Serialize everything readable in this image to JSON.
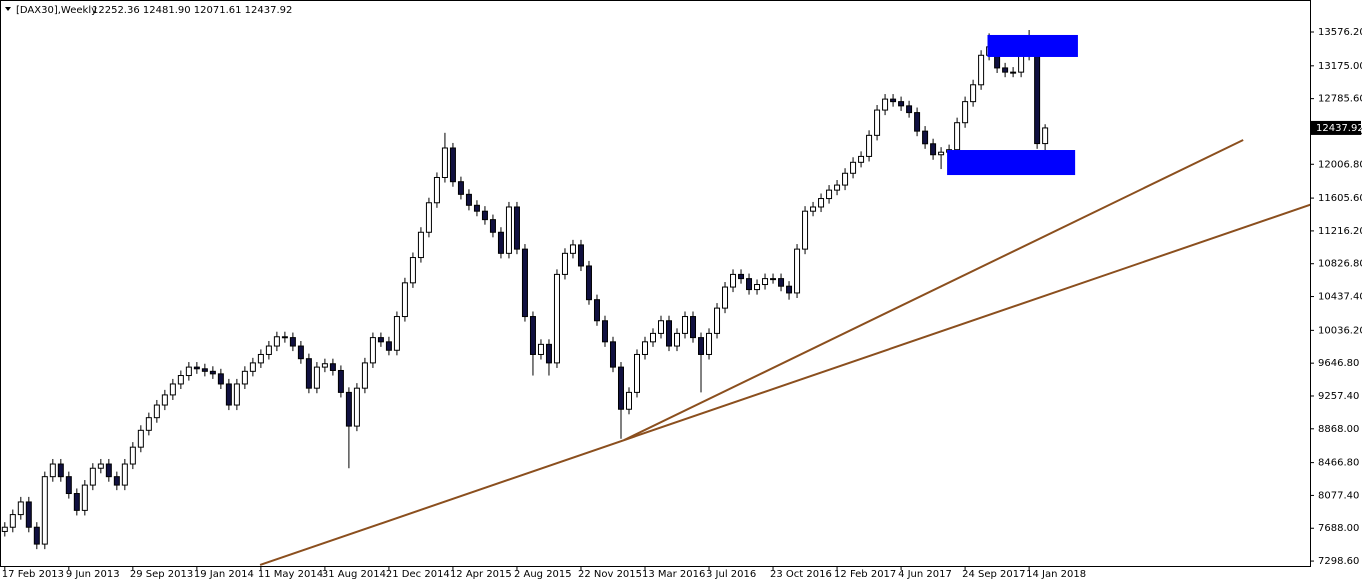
{
  "chart_data": {
    "type": "candlestick",
    "symbol": "[DAX30],Weekly",
    "ohlc_label": "12252.36 12481.90 12071.61 12437.92",
    "up_color": "#ffffff",
    "down_color": "#101040",
    "line_color": "#000000",
    "ylim": [
      7240,
      13956
    ],
    "xlim": [
      -0.6,
      163.1
    ],
    "yticks": [
      {
        "value": 7298.6,
        "label": "7298.60"
      },
      {
        "value": 7688,
        "label": "7688.00"
      },
      {
        "value": 8077.4,
        "label": "8077.40"
      },
      {
        "value": 8466.8,
        "label": "8466.80"
      },
      {
        "value": 8868,
        "label": "8868.00"
      },
      {
        "value": 9257.4,
        "label": "9257.40"
      },
      {
        "value": 9646.8,
        "label": "9646.80"
      },
      {
        "value": 10036.2,
        "label": "10036.20"
      },
      {
        "value": 10437.4,
        "label": "10437.40"
      },
      {
        "value": 10826.8,
        "label": "10826.80"
      },
      {
        "value": 11216.2,
        "label": "11216.20"
      },
      {
        "value": 11605.6,
        "label": "11605.60"
      },
      {
        "value": 12006.8,
        "label": "12006.80"
      },
      {
        "value": 12396.2,
        "label": "12396.20"
      },
      {
        "value": 12785.6,
        "label": "12785.60"
      },
      {
        "value": 13175,
        "label": "13175.00"
      },
      {
        "value": 13576.2,
        "label": "13576.20"
      }
    ],
    "xticks": [
      {
        "value": 0,
        "label": "17 Feb 2013"
      },
      {
        "value": 8,
        "label": "9 Jun 2013"
      },
      {
        "value": 16,
        "label": "29 Sep 2013"
      },
      {
        "value": 24,
        "label": "19 Jan 2014"
      },
      {
        "value": 32,
        "label": "11 May 2014"
      },
      {
        "value": 40,
        "label": "31 Aug 2014"
      },
      {
        "value": 48,
        "label": "21 Dec 2014"
      },
      {
        "value": 56,
        "label": "12 Apr 2015"
      },
      {
        "value": 64,
        "label": "2 Aug 2015"
      },
      {
        "value": 72,
        "label": "22 Nov 2015"
      },
      {
        "value": 80,
        "label": "13 Mar 2016"
      },
      {
        "value": 88,
        "label": "3 Jul 2016"
      },
      {
        "value": 96,
        "label": "23 Oct 2016"
      },
      {
        "value": 104,
        "label": "12 Feb 2017"
      },
      {
        "value": 112,
        "label": "4 Jun 2017"
      },
      {
        "value": 120,
        "label": "24 Sep 2017"
      },
      {
        "value": 128,
        "label": "14 Jan 2018"
      }
    ],
    "candles": [
      [
        7650,
        7760,
        7590,
        7700
      ],
      [
        7700,
        7910,
        7640,
        7850
      ],
      [
        7850,
        8060,
        7790,
        8000
      ],
      [
        8000,
        8060,
        7640,
        7700
      ],
      [
        7700,
        7760,
        7440,
        7500
      ],
      [
        7500,
        8360,
        7440,
        8300
      ],
      [
        8300,
        8510,
        8240,
        8450
      ],
      [
        8450,
        8510,
        8240,
        8300
      ],
      [
        8300,
        8360,
        8040,
        8100
      ],
      [
        8100,
        8160,
        7840,
        7900
      ],
      [
        7900,
        8260,
        7840,
        8200
      ],
      [
        8200,
        8460,
        8140,
        8400
      ],
      [
        8400,
        8510,
        8340,
        8450
      ],
      [
        8450,
        8510,
        8240,
        8300
      ],
      [
        8300,
        8360,
        8140,
        8200
      ],
      [
        8200,
        8510,
        8140,
        8450
      ],
      [
        8450,
        8710,
        8390,
        8650
      ],
      [
        8650,
        8910,
        8590,
        8850
      ],
      [
        8850,
        9060,
        8790,
        9000
      ],
      [
        9000,
        9210,
        8940,
        9150
      ],
      [
        9150,
        9330,
        9090,
        9270
      ],
      [
        9270,
        9460,
        9210,
        9400
      ],
      [
        9400,
        9560,
        9340,
        9500
      ],
      [
        9500,
        9660,
        9440,
        9600
      ],
      [
        9600,
        9660,
        9520,
        9580
      ],
      [
        9580,
        9640,
        9490,
        9550
      ],
      [
        9550,
        9610,
        9460,
        9520
      ],
      [
        9520,
        9580,
        9340,
        9400
      ],
      [
        9400,
        9460,
        9090,
        9150
      ],
      [
        9150,
        9460,
        9090,
        9400
      ],
      [
        9400,
        9610,
        9340,
        9550
      ],
      [
        9550,
        9710,
        9490,
        9650
      ],
      [
        9650,
        9810,
        9590,
        9750
      ],
      [
        9750,
        9910,
        9690,
        9850
      ],
      [
        9850,
        10020,
        9790,
        9960
      ],
      [
        9960,
        10020,
        9890,
        9950
      ],
      [
        9950,
        10010,
        9790,
        9850
      ],
      [
        9850,
        9910,
        9640,
        9700
      ],
      [
        9700,
        9760,
        9290,
        9350
      ],
      [
        9350,
        9660,
        9290,
        9600
      ],
      [
        9600,
        9700,
        9540,
        9640
      ],
      [
        9640,
        9700,
        9500,
        9560
      ],
      [
        9560,
        9620,
        9240,
        9300
      ],
      [
        9300,
        9360,
        8400,
        8900
      ],
      [
        8900,
        9410,
        8840,
        9350
      ],
      [
        9350,
        9710,
        9290,
        9650
      ],
      [
        9650,
        10010,
        9590,
        9950
      ],
      [
        9950,
        10010,
        9840,
        9900
      ],
      [
        9900,
        9960,
        9740,
        9800
      ],
      [
        9800,
        10260,
        9740,
        10200
      ],
      [
        10200,
        10660,
        10140,
        10600
      ],
      [
        10600,
        10960,
        10540,
        10900
      ],
      [
        10900,
        11260,
        10840,
        11200
      ],
      [
        11200,
        11610,
        11140,
        11550
      ],
      [
        11550,
        11910,
        11490,
        11850
      ],
      [
        11850,
        12380,
        11790,
        12200
      ],
      [
        12200,
        12260,
        11740,
        11800
      ],
      [
        11800,
        11860,
        11590,
        11650
      ],
      [
        11650,
        11710,
        11460,
        11520
      ],
      [
        11520,
        11580,
        11390,
        11450
      ],
      [
        11450,
        11510,
        11290,
        11350
      ],
      [
        11350,
        11410,
        11140,
        11200
      ],
      [
        11200,
        11260,
        10890,
        10950
      ],
      [
        10950,
        11560,
        10890,
        11500
      ],
      [
        11500,
        11560,
        10940,
        11000
      ],
      [
        11000,
        11060,
        10140,
        10200
      ],
      [
        10200,
        10260,
        9500,
        9750
      ],
      [
        9750,
        9930,
        9690,
        9870
      ],
      [
        9870,
        9930,
        9500,
        9650
      ],
      [
        9650,
        10760,
        9590,
        10700
      ],
      [
        10700,
        11010,
        10640,
        10950
      ],
      [
        10950,
        11110,
        10890,
        11050
      ],
      [
        11050,
        11110,
        10740,
        10800
      ],
      [
        10800,
        10860,
        10340,
        10400
      ],
      [
        10400,
        10460,
        10090,
        10150
      ],
      [
        10150,
        10210,
        9840,
        9900
      ],
      [
        9900,
        9960,
        9540,
        9600
      ],
      [
        9600,
        9660,
        8750,
        9100
      ],
      [
        9100,
        9360,
        9040,
        9300
      ],
      [
        9300,
        9810,
        9240,
        9750
      ],
      [
        9750,
        9960,
        9690,
        9900
      ],
      [
        9900,
        10060,
        9840,
        10000
      ],
      [
        10000,
        10210,
        9940,
        10150
      ],
      [
        10150,
        10210,
        9790,
        9850
      ],
      [
        9850,
        10060,
        9790,
        10000
      ],
      [
        10000,
        10260,
        9940,
        10200
      ],
      [
        10200,
        10260,
        9890,
        9950
      ],
      [
        9950,
        10010,
        9300,
        9750
      ],
      [
        9750,
        10060,
        9690,
        10000
      ],
      [
        10000,
        10360,
        9940,
        10300
      ],
      [
        10300,
        10610,
        10240,
        10550
      ],
      [
        10550,
        10760,
        10490,
        10700
      ],
      [
        10700,
        10760,
        10590,
        10650
      ],
      [
        10650,
        10710,
        10460,
        10520
      ],
      [
        10520,
        10640,
        10460,
        10580
      ],
      [
        10580,
        10710,
        10520,
        10650
      ],
      [
        10650,
        10710,
        10590,
        10650
      ],
      [
        10650,
        10710,
        10500,
        10560
      ],
      [
        10560,
        10620,
        10400,
        10480
      ],
      [
        10480,
        11060,
        10420,
        11000
      ],
      [
        11000,
        11510,
        10940,
        11450
      ],
      [
        11450,
        11560,
        11390,
        11500
      ],
      [
        11500,
        11660,
        11440,
        11600
      ],
      [
        11600,
        11760,
        11540,
        11700
      ],
      [
        11700,
        11820,
        11640,
        11760
      ],
      [
        11760,
        11960,
        11700,
        11900
      ],
      [
        11900,
        12090,
        11840,
        12030
      ],
      [
        12030,
        12160,
        11970,
        12100
      ],
      [
        12100,
        12410,
        12040,
        12350
      ],
      [
        12350,
        12710,
        12290,
        12650
      ],
      [
        12650,
        12840,
        12590,
        12780
      ],
      [
        12780,
        12840,
        12690,
        12750
      ],
      [
        12750,
        12810,
        12640,
        12700
      ],
      [
        12700,
        12760,
        12560,
        12620
      ],
      [
        12620,
        12680,
        12340,
        12400
      ],
      [
        12400,
        12460,
        12190,
        12250
      ],
      [
        12250,
        12310,
        12060,
        12120
      ],
      [
        12120,
        12210,
        11950,
        12150
      ],
      [
        12150,
        12240,
        12090,
        12180
      ],
      [
        12180,
        12560,
        12120,
        12500
      ],
      [
        12500,
        12810,
        12440,
        12750
      ],
      [
        12750,
        13010,
        12690,
        12950
      ],
      [
        12950,
        13360,
        12890,
        13300
      ],
      [
        13300,
        13560,
        13240,
        13400
      ],
      [
        13400,
        13460,
        13090,
        13150
      ],
      [
        13150,
        13210,
        13040,
        13100
      ],
      [
        13100,
        13160,
        13040,
        13100
      ],
      [
        13100,
        13360,
        13040,
        13300
      ],
      [
        13300,
        13600,
        13240,
        13420
      ],
      [
        13420,
        13480,
        12190,
        12252.36
      ],
      [
        12252.36,
        12481.9,
        12071.61,
        12437.92
      ]
    ],
    "trendline_color": "#8b4f1e",
    "trendlines": [
      {
        "x": [
          77.4,
          154.75
        ],
        "y": [
          8735,
          12295
        ]
      },
      {
        "x": [
          31.9,
          163.75
        ],
        "y": [
          7252,
          11547
        ]
      }
    ],
    "zone_color": "#0000ff",
    "zones": [
      {
        "x": [
          122.8,
          134.1
        ],
        "y": [
          13280,
          13541
        ]
      },
      {
        "x": [
          117.75,
          133.75
        ],
        "y": [
          11879,
          12176
        ]
      }
    ]
  }
}
